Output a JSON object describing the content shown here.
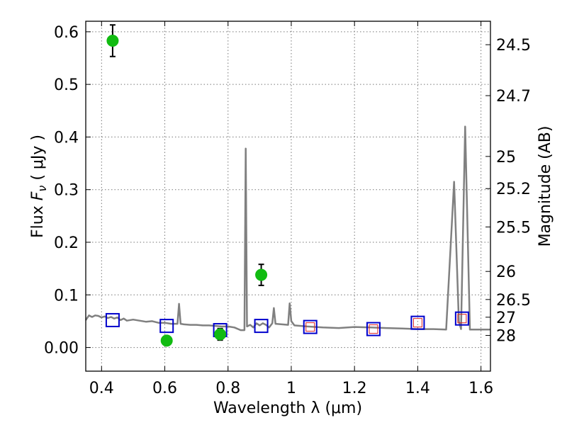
{
  "chart_data": {
    "type": "scatter",
    "xlabel": "Wavelength  λ (μm)",
    "ylabel": "Flux  F_ν  ( μJy )",
    "ylabel_parts": {
      "prefix": "Flux  ",
      "var": "F",
      "sub": "ν",
      "suffix": "  ( μJy )"
    },
    "y2label": "Magnitude (AB)",
    "xlim": [
      0.35,
      1.63
    ],
    "ylim": [
      -0.045,
      0.62
    ],
    "grid": true,
    "x_ticks": [
      0.4,
      0.6,
      0.8,
      1.0,
      1.2,
      1.4,
      1.6
    ],
    "x_tick_labels": [
      "0.4",
      "0.6",
      "0.8",
      "1",
      "1.2",
      "1.4",
      "1.6"
    ],
    "y_ticks": [
      0.0,
      0.1,
      0.2,
      0.3,
      0.4,
      0.5,
      0.6
    ],
    "y_tick_labels": [
      "0.00",
      "0.1",
      "0.2",
      "0.3",
      "0.4",
      "0.5",
      "0.6"
    ],
    "y2_ticks": [
      {
        "label": "24.5",
        "mag": 24.5
      },
      {
        "label": "24.7",
        "mag": 24.7
      },
      {
        "label": "25",
        "mag": 25.0
      },
      {
        "label": "25.2",
        "mag": 25.2
      },
      {
        "label": "25.5",
        "mag": 25.5
      },
      {
        "label": "26",
        "mag": 26.0
      },
      {
        "label": "26.5",
        "mag": 26.5
      },
      {
        "label": "27",
        "mag": 27.0
      },
      {
        "label": "28",
        "mag": 28.0
      }
    ],
    "colors": {
      "observed": "#11bb11",
      "model_band": "#0000cc",
      "model_band_ir": "#dd2222",
      "sed": "#808080",
      "grid": "#777777"
    },
    "series": [
      {
        "kind": "points_with_errors",
        "points": [
          {
            "x": 0.435,
            "y": 0.583,
            "err": 0.03
          },
          {
            "x": 0.606,
            "y": 0.013,
            "err": 0.006
          },
          {
            "x": 0.775,
            "y": 0.025,
            "err": 0.011
          },
          {
            "x": 0.905,
            "y": 0.138,
            "err": 0.02
          }
        ]
      },
      {
        "kind": "open_squares",
        "points": [
          {
            "x": 0.435,
            "y": 0.052
          },
          {
            "x": 0.606,
            "y": 0.041
          },
          {
            "x": 0.775,
            "y": 0.033
          },
          {
            "x": 0.905,
            "y": 0.041
          }
        ]
      },
      {
        "kind": "open_squares_ir",
        "points": [
          {
            "x": 1.06,
            "y": 0.039
          },
          {
            "x": 1.26,
            "y": 0.035
          },
          {
            "x": 1.4,
            "y": 0.047
          },
          {
            "x": 1.54,
            "y": 0.055
          }
        ]
      },
      {
        "kind": "line",
        "points": [
          [
            0.35,
            0.052
          ],
          [
            0.36,
            0.061
          ],
          [
            0.37,
            0.058
          ],
          [
            0.38,
            0.061
          ],
          [
            0.39,
            0.06
          ],
          [
            0.4,
            0.057
          ],
          [
            0.41,
            0.059
          ],
          [
            0.42,
            0.056
          ],
          [
            0.43,
            0.058
          ],
          [
            0.44,
            0.055
          ],
          [
            0.45,
            0.057
          ],
          [
            0.46,
            0.052
          ],
          [
            0.47,
            0.055
          ],
          [
            0.48,
            0.051
          ],
          [
            0.5,
            0.053
          ],
          [
            0.52,
            0.051
          ],
          [
            0.54,
            0.049
          ],
          [
            0.56,
            0.05
          ],
          [
            0.58,
            0.047
          ],
          [
            0.6,
            0.047
          ],
          [
            0.62,
            0.045
          ],
          [
            0.64,
            0.045
          ],
          [
            0.645,
            0.083
          ],
          [
            0.65,
            0.045
          ],
          [
            0.66,
            0.044
          ],
          [
            0.68,
            0.043
          ],
          [
            0.7,
            0.043
          ],
          [
            0.72,
            0.042
          ],
          [
            0.74,
            0.042
          ],
          [
            0.76,
            0.041
          ],
          [
            0.78,
            0.04
          ],
          [
            0.8,
            0.04
          ],
          [
            0.82,
            0.038
          ],
          [
            0.84,
            0.033
          ],
          [
            0.852,
            0.033
          ],
          [
            0.856,
            0.378
          ],
          [
            0.86,
            0.04
          ],
          [
            0.87,
            0.043
          ],
          [
            0.88,
            0.038
          ],
          [
            0.89,
            0.046
          ],
          [
            0.9,
            0.042
          ],
          [
            0.91,
            0.046
          ],
          [
            0.92,
            0.043
          ],
          [
            0.93,
            0.038
          ],
          [
            0.94,
            0.046
          ],
          [
            0.945,
            0.075
          ],
          [
            0.95,
            0.045
          ],
          [
            0.97,
            0.044
          ],
          [
            0.99,
            0.043
          ],
          [
            0.995,
            0.084
          ],
          [
            1.0,
            0.05
          ],
          [
            1.01,
            0.042
          ],
          [
            1.03,
            0.041
          ],
          [
            1.05,
            0.04
          ],
          [
            1.1,
            0.038
          ],
          [
            1.15,
            0.037
          ],
          [
            1.2,
            0.039
          ],
          [
            1.25,
            0.038
          ],
          [
            1.3,
            0.037
          ],
          [
            1.35,
            0.036
          ],
          [
            1.4,
            0.035
          ],
          [
            1.45,
            0.035
          ],
          [
            1.49,
            0.034
          ],
          [
            1.515,
            0.315
          ],
          [
            1.53,
            0.05
          ],
          [
            1.537,
            0.035
          ],
          [
            1.55,
            0.42
          ],
          [
            1.565,
            0.034
          ],
          [
            1.6,
            0.034
          ],
          [
            1.63,
            0.034
          ]
        ]
      }
    ]
  }
}
